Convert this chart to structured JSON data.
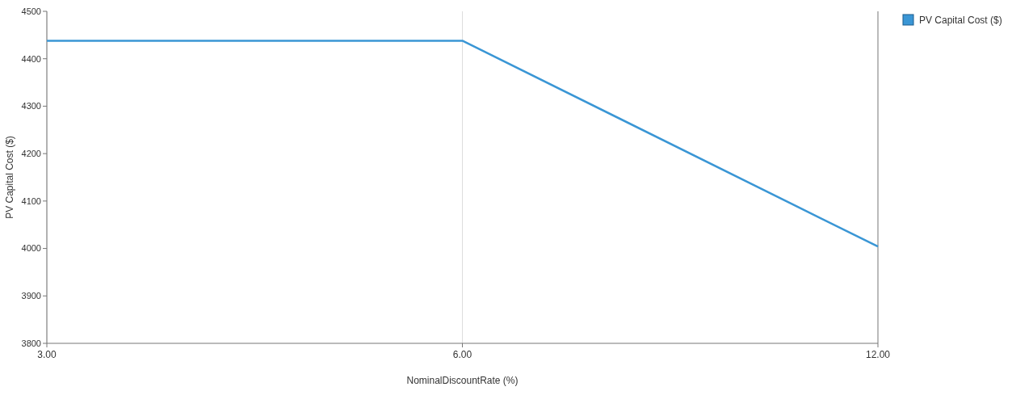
{
  "chart_data": {
    "type": "line",
    "xlabel": "NominalDiscountRate (%)",
    "ylabel": "PV Capital Cost ($)",
    "categories": [
      "3.00",
      "6.00",
      "12.00"
    ],
    "series": [
      {
        "name": "PV Capital Cost ($)",
        "color": "#3a96d5",
        "values": [
          4438,
          4438,
          4004
        ]
      }
    ],
    "ylim": [
      3800,
      4500
    ],
    "yticks": [
      3800,
      3900,
      4000,
      4100,
      4200,
      4300,
      4400,
      4500
    ],
    "grid": "x",
    "legend": "top right",
    "marker": "none",
    "line_style": "solid"
  }
}
